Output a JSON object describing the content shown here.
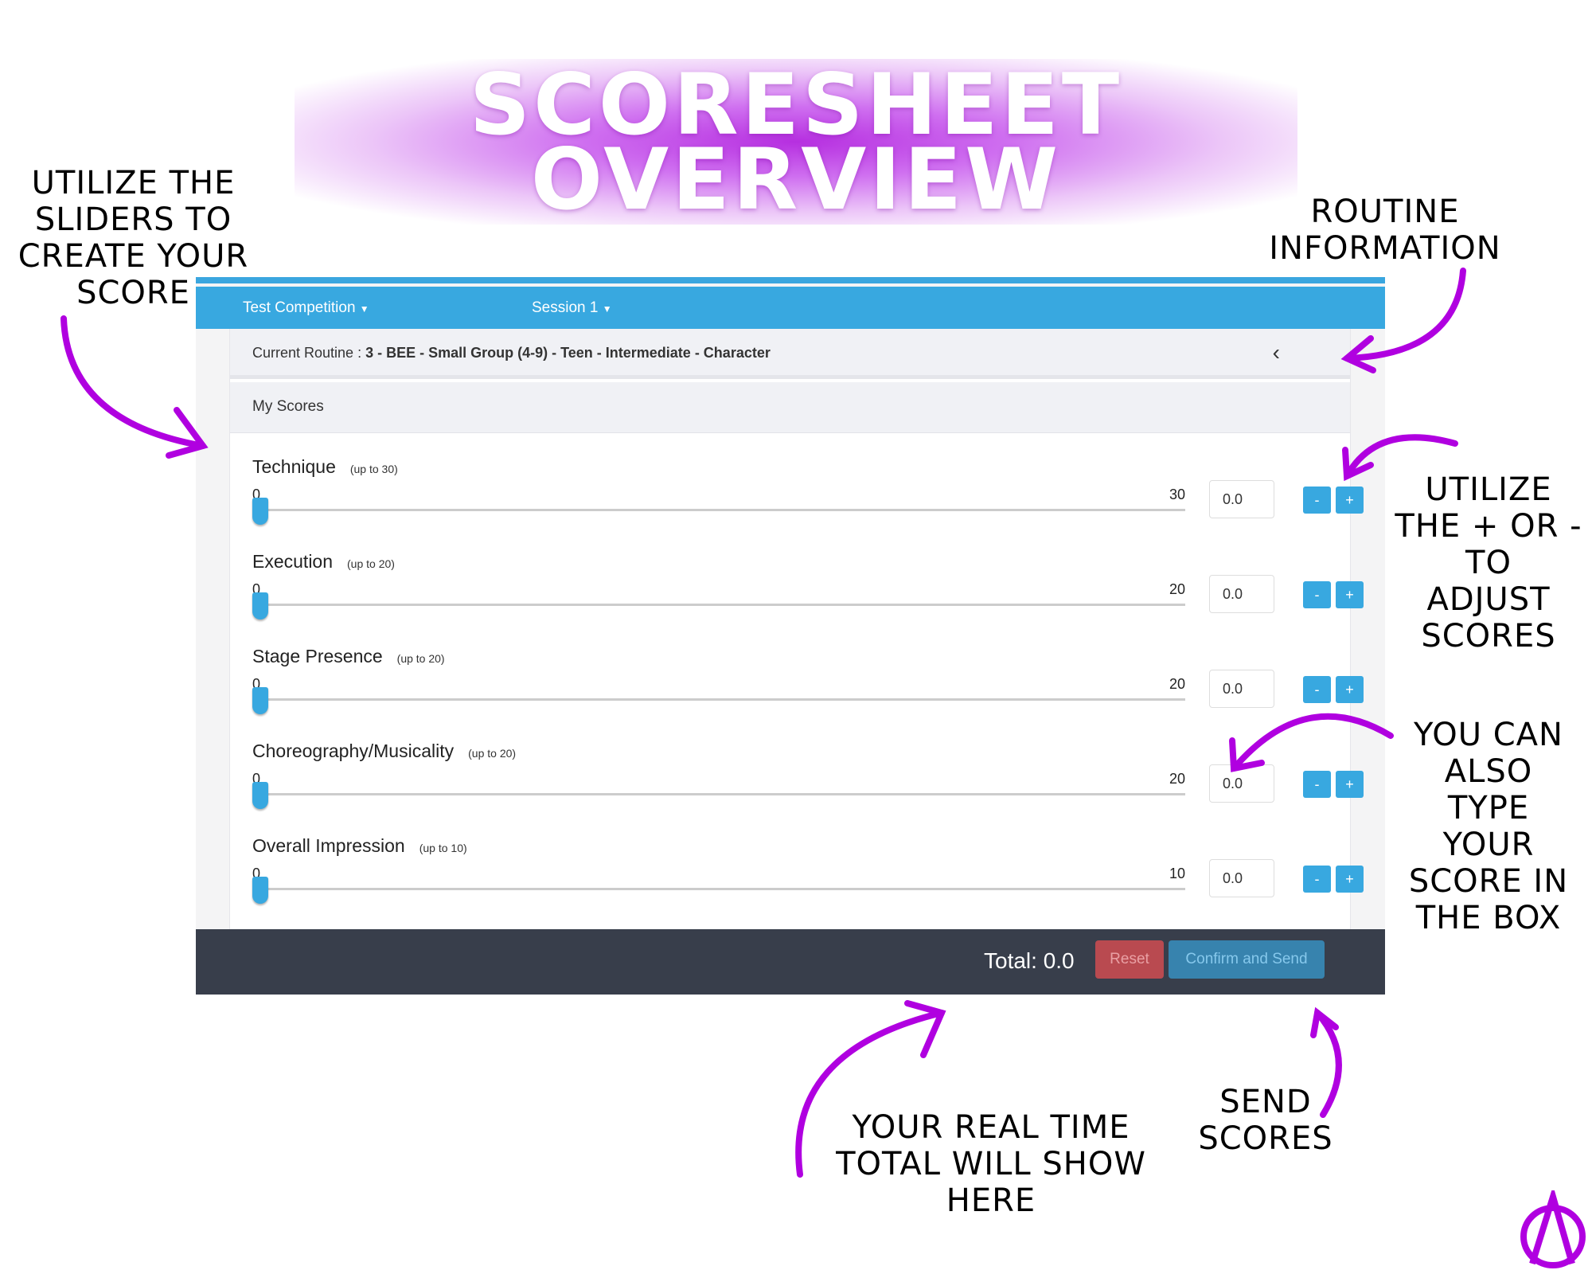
{
  "banner": {
    "line1": "SCORESHEET",
    "line2": "OVERVIEW"
  },
  "annotations": {
    "sliders": "UTILIZE THE\nSLIDERS TO\nCREATE YOUR\nSCORE",
    "routine": "ROUTINE\nINFORMATION",
    "plusminus": "UTILIZE\nTHE + OR -\nTO\nADJUST\nSCORES",
    "type": "YOU CAN\nALSO\nTYPE\nYOUR\nSCORE IN\nTHE BOX",
    "total": "YOUR REAL TIME\nTOTAL WILL SHOW\nHERE",
    "send": "SEND\nSCORES"
  },
  "nav": {
    "competition": "Test Competition",
    "session": "Session 1"
  },
  "routine": {
    "label": "Current Routine : ",
    "value": "3 - BEE - Small Group (4-9) - Teen - Intermediate - Character"
  },
  "section": "My Scores",
  "scores": [
    {
      "name": "Technique",
      "hint": "(up to 30)",
      "min": "0",
      "max": "30",
      "value": "0.0",
      "level": 0
    },
    {
      "name": "Execution",
      "hint": "(up to 20)",
      "min": "0",
      "max": "20",
      "value": "0.0",
      "level": 0
    },
    {
      "name": "Stage Presence",
      "hint": "(up to 20)",
      "min": "0",
      "max": "20",
      "value": "0.0",
      "level": 0
    },
    {
      "name": "Choreography/Musicality",
      "hint": "(up to 20)",
      "min": "0",
      "max": "20",
      "value": "0.0",
      "level": 0
    },
    {
      "name": "Overall Impression",
      "hint": "(up to 10)",
      "min": "0",
      "max": "10",
      "value": "0.0",
      "level": 0
    }
  ],
  "buttons": {
    "minus": "-",
    "plus": "+",
    "reset": "Reset",
    "send": "Confirm and Send"
  },
  "total": "Total: 0.0",
  "colors": {
    "accent": "#38a8e0",
    "arrow": "#b000e0",
    "footer": "#383e4b",
    "reset": "#b94a50",
    "send": "#3783ae"
  }
}
